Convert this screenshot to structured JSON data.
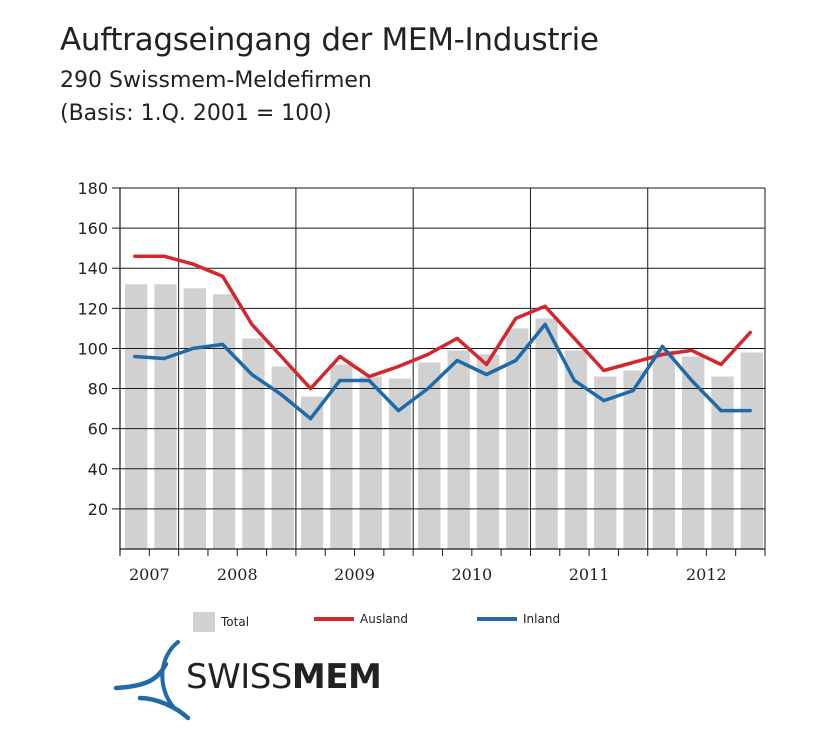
{
  "chart_data": {
    "type": "bar",
    "title": "Auftragseingang der MEM-Industrie",
    "subtitle": "290 Swissmem-Meldefirmen",
    "basis": "(Basis: 1.Q. 2001 = 100)",
    "ylim": [
      0,
      180
    ],
    "yticks": [
      20,
      40,
      60,
      80,
      100,
      120,
      140,
      160,
      180
    ],
    "year_labels": [
      "2007",
      "2008",
      "2009",
      "2010",
      "2011",
      "2012"
    ],
    "quarters": 22,
    "series": [
      {
        "name": "Total",
        "kind": "bar",
        "color": "#d1d1d1",
        "values": [
          132,
          132,
          130,
          127,
          105,
          91,
          76,
          92,
          86,
          85,
          93,
          99,
          97,
          110,
          115,
          99,
          86,
          89,
          99,
          96,
          86,
          98
        ]
      },
      {
        "name": "Ausland",
        "kind": "line",
        "color": "#d3272d",
        "values": [
          146,
          146,
          142,
          136,
          112,
          96,
          80,
          96,
          86,
          91,
          97,
          105,
          92,
          115,
          121,
          105,
          89,
          93,
          97,
          99,
          92,
          108
        ]
      },
      {
        "name": "Inland",
        "kind": "line",
        "color": "#1f6aa8",
        "values": [
          96,
          95,
          100,
          102,
          87,
          77,
          65,
          84,
          84,
          69,
          80,
          94,
          87,
          94,
          112,
          84,
          74,
          79,
          101,
          84,
          69,
          69
        ]
      }
    ],
    "legend": [
      "Total",
      "Ausland",
      "Inland"
    ],
    "grid": true
  },
  "logo": {
    "brand_light": "SWISS",
    "brand_bold": "MEM",
    "color": "#1f6aa8"
  }
}
